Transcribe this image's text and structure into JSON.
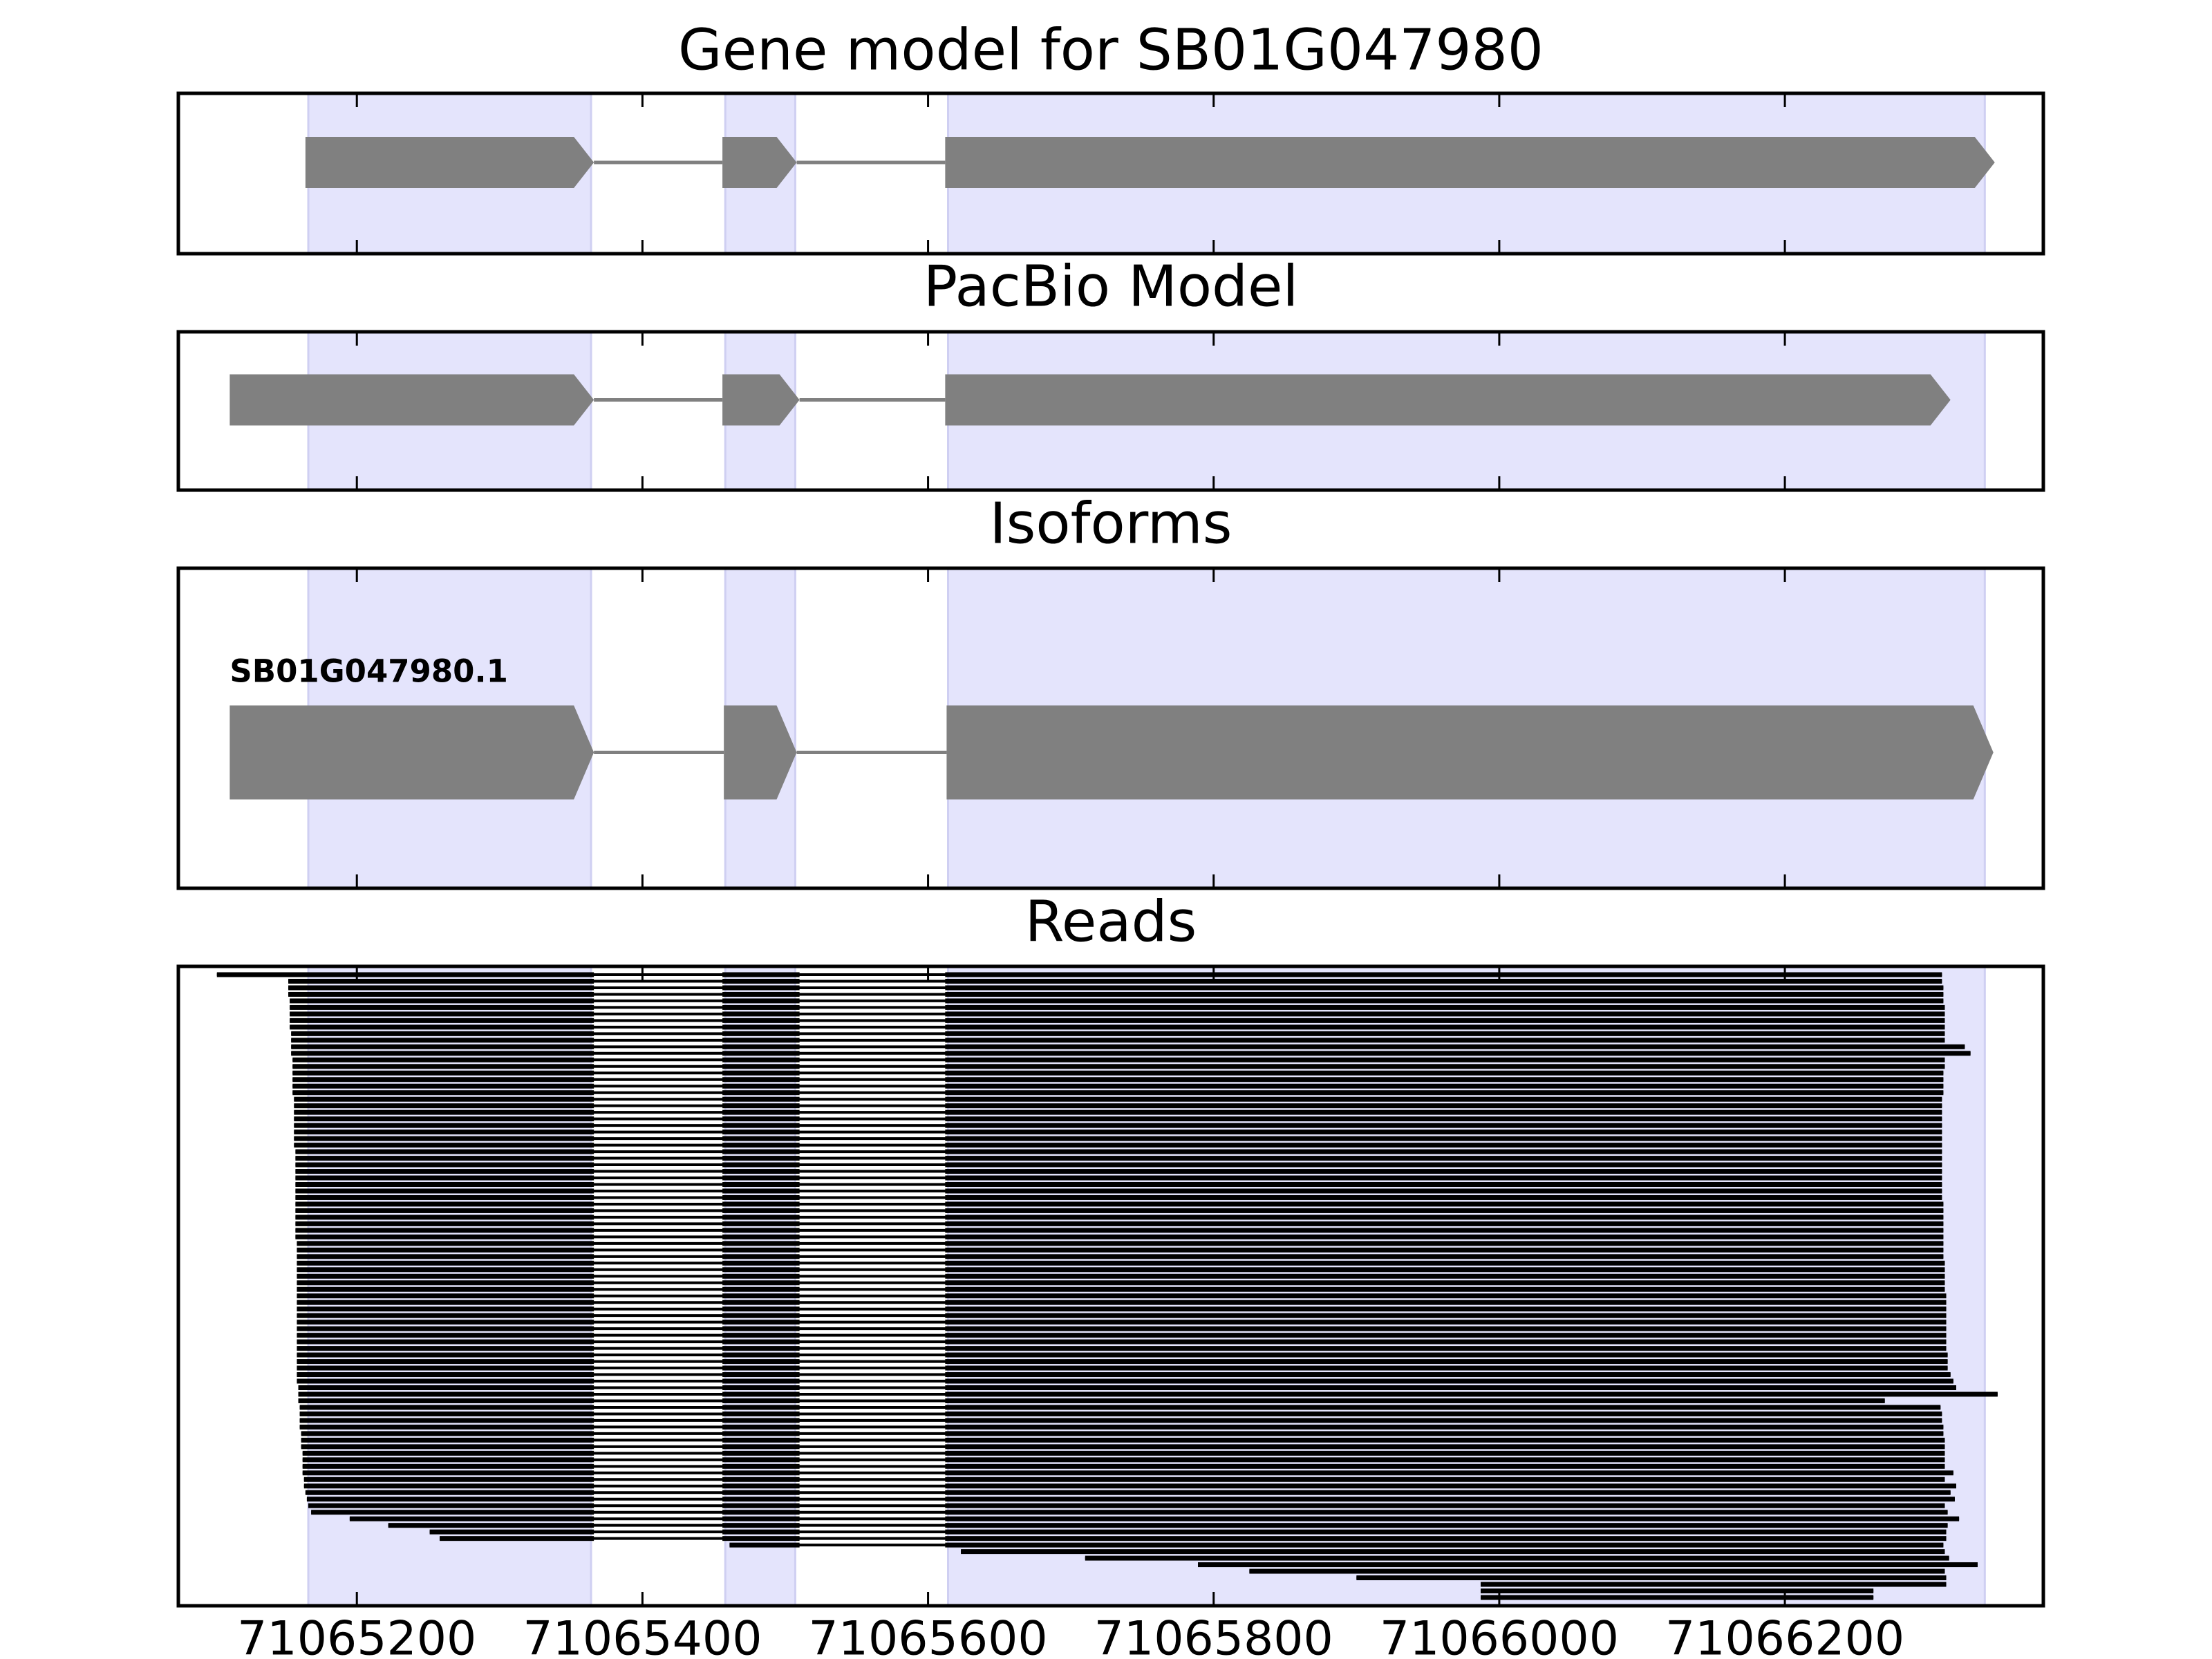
{
  "chart_data": [
    {
      "type": "gene_model",
      "title": "Gene model for SB01G047980",
      "color": "#808080",
      "exons": [
        [
          71065164,
          71065366
        ],
        [
          71065456,
          71065508
        ],
        [
          71065612,
          71066347
        ]
      ]
    },
    {
      "type": "gene_model",
      "title": "PacBio Model",
      "color": "#808080",
      "exons": [
        [
          71065111,
          71065366
        ],
        [
          71065456,
          71065510
        ],
        [
          71065612,
          71066316
        ]
      ]
    },
    {
      "type": "isoforms",
      "title": "Isoforms",
      "color": "#808080",
      "isoforms": [
        {
          "name": "SB01G047980.1",
          "exons": [
            [
              71065111,
              71065366
            ],
            [
              71065457,
              71065508
            ],
            [
              71065613,
              71066346
            ]
          ]
        }
      ]
    },
    {
      "type": "reads",
      "title": "Reads",
      "color": "#000000",
      "shade_color": "#e4e4fc",
      "xlim": [
        71065075,
        71066381
      ],
      "xticks": [
        71065200,
        71065400,
        71065600,
        71065800,
        71066000,
        71066200
      ],
      "highlight": [
        [
          71065166,
          71065364
        ],
        [
          71065458,
          71065507
        ],
        [
          71065614,
          71066340
        ]
      ],
      "introns": [
        [
          71065366,
          71065456
        ],
        [
          71065510,
          71065612
        ]
      ],
      "starts": [
        71065102,
        71065152,
        71065152,
        71065152,
        71065153,
        71065153,
        71065153,
        71065153,
        71065153,
        71065154,
        71065154,
        71065154,
        71065154,
        71065155,
        71065155,
        71065155,
        71065155,
        71065155,
        71065155,
        71065156,
        71065156,
        71065156,
        71065156,
        71065156,
        71065156,
        71065156,
        71065156,
        71065157,
        71065157,
        71065157,
        71065157,
        71065157,
        71065157,
        71065157,
        71065157,
        71065157,
        71065157,
        71065157,
        71065157,
        71065157,
        71065157,
        71065158,
        71065158,
        71065158,
        71065158,
        71065158,
        71065158,
        71065158,
        71065158,
        71065158,
        71065158,
        71065158,
        71065158,
        71065158,
        71065158,
        71065158,
        71065158,
        71065158,
        71065158,
        71065158,
        71065158,
        71065158,
        71065158,
        71065159,
        71065159,
        71065159,
        71065160,
        71065160,
        71065160,
        71065160,
        71065161,
        71065161,
        71065161,
        71065162,
        71065162,
        71065162,
        71065162,
        71065163,
        71065163,
        71065164,
        71065165,
        71065166,
        71065168,
        71065195,
        71065222,
        71065251,
        71065258,
        71065461,
        71065623,
        71065710,
        71065789,
        71065825,
        71065900,
        71065987,
        71065987,
        71065987
      ],
      "ends": [
        71066310,
        71066310,
        71066311,
        71066311,
        71066311,
        71066312,
        71066312,
        71066312,
        71066312,
        71066312,
        71066312,
        71066326,
        71066330,
        71066312,
        71066312,
        71066311,
        71066311,
        71066311,
        71066311,
        71066310,
        71066310,
        71066310,
        71066310,
        71066310,
        71066310,
        71066310,
        71066310,
        71066310,
        71066310,
        71066310,
        71066310,
        71066310,
        71066310,
        71066310,
        71066310,
        71066311,
        71066311,
        71066311,
        71066311,
        71066311,
        71066311,
        71066311,
        71066311,
        71066311,
        71066312,
        71066312,
        71066312,
        71066312,
        71066312,
        71066313,
        71066313,
        71066313,
        71066313,
        71066313,
        71066313,
        71066313,
        71066313,
        71066313,
        71066314,
        71066314,
        71066314,
        71066316,
        71066318,
        71066320,
        71066349,
        71066270,
        71066309,
        71066310,
        71066310,
        71066311,
        71066311,
        71066312,
        71066312,
        71066312,
        71066312,
        71066312,
        71066318,
        71066312,
        71066320,
        71066316,
        71066319,
        71066312,
        71066314,
        71066322,
        71066314,
        71066313,
        71066313,
        71066311,
        71066312,
        71066315,
        71066335,
        71066312,
        71066313,
        71066313,
        71066262,
        71066262
      ]
    }
  ]
}
